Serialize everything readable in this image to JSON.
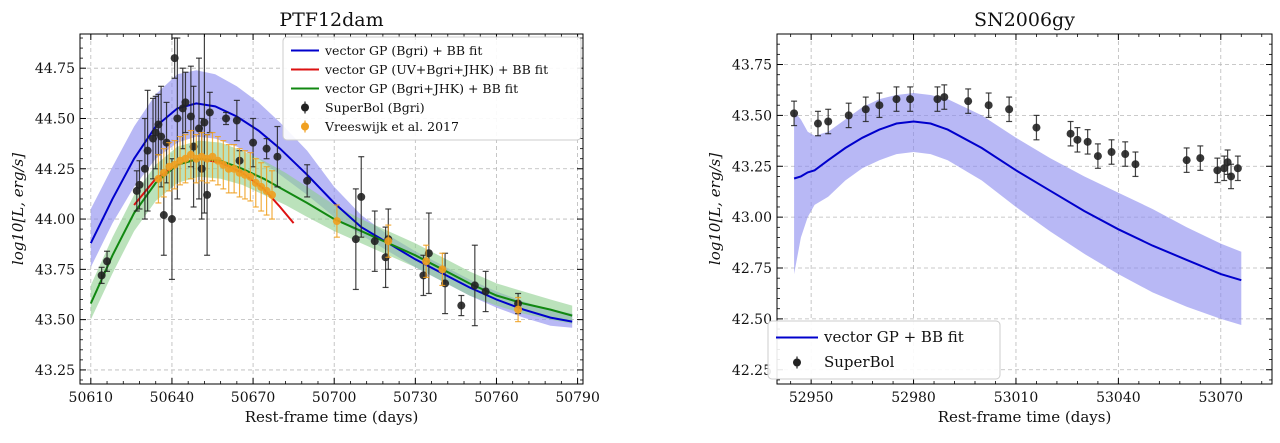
{
  "chart_data": [
    {
      "type": "line",
      "title": "PTF12dam",
      "xlabel": "Rest-frame time (days)",
      "ylabel": "log10[L, erg/s]",
      "xlim": [
        50606,
        50792
      ],
      "ylim": [
        43.18,
        44.92
      ],
      "xticks": [
        50610,
        50640,
        50670,
        50700,
        50730,
        50760,
        50790
      ],
      "yticks": [
        43.25,
        43.5,
        43.75,
        44.0,
        44.25,
        44.5,
        44.75
      ],
      "grid": true,
      "legend_position": "top-right",
      "series": [
        {
          "name": "vector GP (Bgri) + BB fit",
          "kind": "line-band",
          "color": "#0000cc",
          "band_color": "#8888ee",
          "x": [
            50610,
            50618,
            50626,
            50634,
            50642,
            50649,
            50656,
            50664,
            50672,
            50680,
            50690,
            50700,
            50710,
            50720,
            50730,
            50740,
            50750,
            50760,
            50770,
            50780,
            50788
          ],
          "y": [
            43.88,
            44.1,
            44.3,
            44.46,
            44.55,
            44.575,
            44.56,
            44.51,
            44.44,
            44.35,
            44.22,
            44.08,
            43.96,
            43.88,
            43.8,
            43.73,
            43.66,
            43.6,
            43.55,
            43.51,
            43.49
          ],
          "band_lo": [
            43.76,
            43.98,
            44.16,
            44.3,
            44.38,
            44.41,
            44.4,
            44.36,
            44.3,
            44.22,
            44.12,
            44.01,
            43.92,
            43.84,
            43.76,
            43.69,
            43.62,
            43.56,
            43.51,
            43.47,
            43.46
          ],
          "band_hi": [
            44.05,
            44.26,
            44.46,
            44.62,
            44.72,
            44.74,
            44.72,
            44.66,
            44.58,
            44.48,
            44.34,
            44.16,
            44.02,
            43.92,
            43.84,
            43.77,
            43.7,
            43.64,
            43.59,
            43.55,
            43.53
          ]
        },
        {
          "name": "vector GP (UV+Bgri+JHK) + BB fit",
          "kind": "line",
          "color": "#dd1111",
          "x": [
            50626,
            50634,
            50642,
            50650,
            50658,
            50666,
            50674,
            50680,
            50685
          ],
          "y": [
            44.07,
            44.2,
            44.27,
            44.3,
            44.28,
            44.23,
            44.15,
            44.06,
            43.98
          ]
        },
        {
          "name": "vector GP (Bgri+JHK) + BB fit",
          "kind": "line-band",
          "color": "#118811",
          "band_color": "#8ecf8e",
          "x": [
            50610,
            50618,
            50626,
            50634,
            50642,
            50650,
            50658,
            50666,
            50674,
            50682,
            50690,
            50700,
            50710,
            50720,
            50730,
            50740,
            50750,
            50760,
            50770,
            50780,
            50788
          ],
          "y": [
            43.58,
            43.82,
            44.03,
            44.18,
            44.27,
            44.3,
            44.29,
            44.25,
            44.2,
            44.14,
            44.08,
            44.0,
            43.94,
            43.88,
            43.82,
            43.75,
            43.68,
            43.62,
            43.58,
            43.55,
            43.52
          ],
          "band_lo": [
            43.5,
            43.73,
            43.94,
            44.09,
            44.18,
            44.21,
            44.2,
            44.17,
            44.12,
            44.07,
            44.01,
            43.94,
            43.88,
            43.82,
            43.76,
            43.69,
            43.62,
            43.57,
            43.53,
            43.5,
            43.48
          ],
          "band_hi": [
            43.67,
            43.91,
            44.12,
            44.27,
            44.36,
            44.39,
            44.38,
            44.34,
            44.29,
            44.23,
            44.16,
            44.07,
            44.0,
            43.94,
            43.88,
            43.81,
            43.74,
            43.68,
            43.64,
            43.6,
            43.57
          ]
        },
        {
          "name": "SuperBol (Bgri)",
          "kind": "errorbar",
          "color": "#222222",
          "x": [
            50614,
            50616,
            50627,
            50628,
            50630,
            50631,
            50633,
            50634,
            50635,
            50636,
            50637,
            50638,
            50640,
            50641,
            50642,
            50644,
            50645,
            50647,
            50648,
            50650,
            50651,
            50652,
            50653,
            50654,
            50660,
            50664,
            50665,
            50670,
            50675,
            50679,
            50690,
            50708,
            50710,
            50715,
            50719,
            50720,
            50733,
            50735,
            50741,
            50747,
            50752,
            50756,
            50768
          ],
          "y": [
            43.72,
            43.79,
            44.14,
            44.17,
            44.25,
            44.34,
            44.4,
            44.43,
            44.47,
            44.41,
            44.02,
            44.38,
            44.0,
            44.8,
            44.5,
            44.55,
            44.58,
            44.51,
            44.36,
            44.45,
            44.25,
            44.48,
            44.12,
            44.53,
            44.5,
            44.49,
            44.29,
            44.38,
            44.35,
            44.31,
            44.19,
            43.9,
            44.11,
            43.89,
            43.81,
            43.9,
            43.72,
            43.83,
            43.68,
            43.57,
            43.67,
            43.64,
            43.58
          ],
          "err": [
            0.04,
            0.05,
            0.1,
            0.12,
            0.25,
            0.3,
            0.2,
            0.18,
            0.15,
            0.25,
            0.2,
            0.2,
            0.3,
            0.1,
            0.4,
            0.2,
            0.15,
            0.25,
            0.3,
            0.35,
            0.25,
            0.45,
            0.3,
            0.1,
            0.03,
            0.1,
            0.05,
            0.12,
            0.05,
            0.15,
            0.08,
            0.25,
            0.2,
            0.15,
            0.15,
            0.15,
            0.1,
            0.2,
            0.15,
            0.05,
            0.2,
            0.1,
            0.05
          ]
        },
        {
          "name": "Vreeswijk et al. 2017",
          "kind": "errorbar",
          "color": "#f0a020",
          "x": [
            50635,
            50637,
            50639,
            50641,
            50643,
            50645,
            50647,
            50649,
            50651,
            50653,
            50655,
            50657,
            50659,
            50661,
            50663,
            50665,
            50667,
            50669,
            50671,
            50673,
            50675,
            50677,
            50701,
            50720,
            50734,
            50740,
            50768
          ],
          "y": [
            44.2,
            44.23,
            44.26,
            44.27,
            44.29,
            44.3,
            44.32,
            44.3,
            44.31,
            44.3,
            44.31,
            44.29,
            44.27,
            44.25,
            44.25,
            44.23,
            44.22,
            44.21,
            44.18,
            44.16,
            44.14,
            44.12,
            43.99,
            43.89,
            43.79,
            43.75,
            43.55
          ],
          "err": [
            0.12,
            0.12,
            0.12,
            0.12,
            0.12,
            0.12,
            0.12,
            0.12,
            0.12,
            0.12,
            0.12,
            0.12,
            0.12,
            0.12,
            0.12,
            0.12,
            0.12,
            0.12,
            0.12,
            0.12,
            0.12,
            0.12,
            0.08,
            0.08,
            0.08,
            0.08,
            0.06
          ]
        }
      ]
    },
    {
      "type": "line",
      "title": "SN2006gy",
      "xlabel": "Rest-frame time (days)",
      "ylabel": "log10[L, erg/s]",
      "xlim": [
        52940,
        53085
      ],
      "ylim": [
        42.18,
        43.9
      ],
      "xticks": [
        52950,
        52980,
        53010,
        53040,
        53070
      ],
      "yticks": [
        42.25,
        42.5,
        42.75,
        43.0,
        43.25,
        43.5,
        43.75
      ],
      "grid": true,
      "legend_position": "bottom-left",
      "series": [
        {
          "name": "vector GP + BB fit",
          "kind": "line-band",
          "color": "#0000cc",
          "band_color": "#8888ee",
          "x": [
            52945,
            52947,
            52949,
            52951,
            52955,
            52960,
            52965,
            52970,
            52975,
            52980,
            52985,
            52990,
            53000,
            53010,
            53020,
            53030,
            53040,
            53050,
            53060,
            53070,
            53076
          ],
          "y": [
            43.19,
            43.2,
            43.22,
            43.23,
            43.28,
            43.34,
            43.39,
            43.43,
            43.46,
            43.47,
            43.46,
            43.43,
            43.34,
            43.23,
            43.13,
            43.03,
            42.94,
            42.86,
            42.79,
            42.72,
            42.69
          ],
          "band_lo": [
            42.72,
            42.9,
            43.0,
            43.06,
            43.1,
            43.18,
            43.24,
            43.28,
            43.31,
            43.32,
            43.31,
            43.28,
            43.18,
            43.05,
            42.93,
            42.82,
            42.72,
            42.63,
            42.56,
            42.5,
            42.47
          ],
          "band_hi": [
            43.52,
            43.48,
            43.42,
            43.4,
            43.42,
            43.48,
            43.54,
            43.58,
            43.6,
            43.61,
            43.6,
            43.58,
            43.5,
            43.39,
            43.29,
            43.2,
            43.12,
            43.04,
            42.95,
            42.87,
            42.83
          ]
        },
        {
          "name": "SuperBol",
          "kind": "errorbar",
          "color": "#222222",
          "x": [
            52945,
            52952,
            52955,
            52961,
            52966,
            52970,
            52975,
            52979,
            52987,
            52989,
            52996,
            53002,
            53008,
            53016,
            53026,
            53028,
            53031,
            53034,
            53038,
            53042,
            53045,
            53060,
            53064,
            53069,
            53071,
            53072,
            53073,
            53075
          ],
          "y": [
            43.51,
            43.46,
            43.47,
            43.5,
            43.53,
            43.55,
            43.58,
            43.58,
            43.58,
            43.59,
            43.57,
            43.55,
            43.53,
            43.44,
            43.41,
            43.38,
            43.37,
            43.3,
            43.32,
            43.31,
            43.26,
            43.28,
            43.29,
            43.23,
            43.24,
            43.27,
            43.2,
            43.24
          ]
        }
      ]
    }
  ]
}
